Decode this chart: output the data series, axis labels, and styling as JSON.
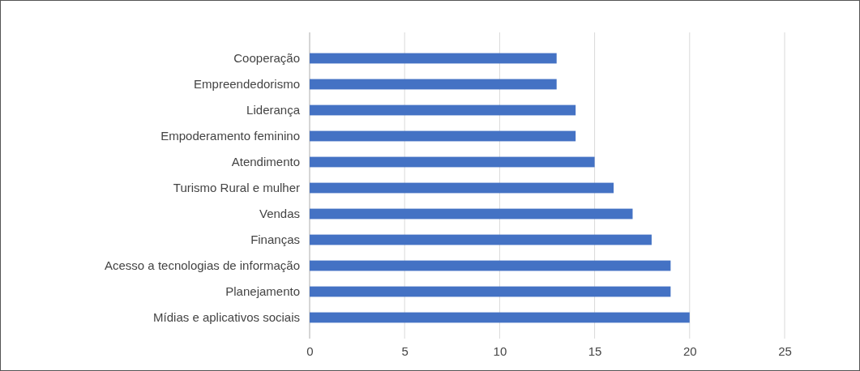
{
  "chart_data": {
    "type": "bar",
    "orientation": "horizontal",
    "categories": [
      "Cooperação",
      "Empreendedorismo",
      "Liderança",
      "Empoderamento feminino",
      "Atendimento",
      "Turismo Rural e mulher",
      "Vendas",
      "Finanças",
      "Acesso a tecnologias de informação",
      "Planejamento",
      "Mídias e aplicativos sociais"
    ],
    "values": [
      13,
      13,
      14,
      14,
      15,
      16,
      17,
      18,
      19,
      19,
      20
    ],
    "color": "#4472c4",
    "xlim": [
      0,
      25
    ],
    "xticks": [
      0,
      5,
      10,
      15,
      20,
      25
    ],
    "grid": "x"
  }
}
